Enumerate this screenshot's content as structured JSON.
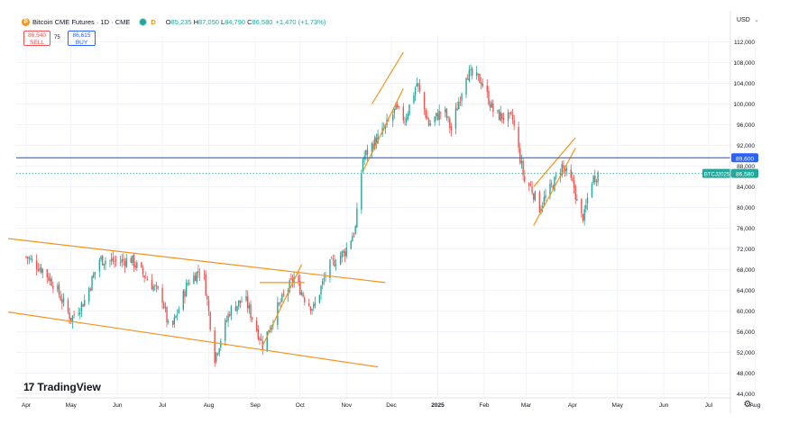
{
  "header": {
    "symbol_title": "Bitcoin CME Futures · 1D · CME",
    "logo_letter": "₿",
    "status_letter": "D",
    "o_label": "O",
    "o_value": "85,235",
    "h_label": "H",
    "h_value": "87,050",
    "l_label": "L",
    "l_value": "84,790",
    "c_label": "C",
    "c_value": "86,580",
    "change": "+1,470 (+1.73%)"
  },
  "trade": {
    "sell_price": "86,540",
    "sell_label": "SELL",
    "spread": "75",
    "buy_price": "86,615",
    "buy_label": "BUY"
  },
  "currency": "USD",
  "brand": "TradingView",
  "colors": {
    "up": "#26a69a",
    "down": "#ef5350",
    "trend": "#f7931a",
    "hline": "#2962ff",
    "grid": "#f0f3fa"
  },
  "chart_data": {
    "type": "candlestick",
    "symbol": "BTCJ2025",
    "y_ticks": [
      112000,
      108000,
      104000,
      100000,
      96000,
      92000,
      88000,
      84000,
      80000,
      76000,
      72000,
      68000,
      64000,
      60000,
      56000,
      52000,
      48000,
      44000
    ],
    "y_tick_labels": [
      "112,000",
      "108,000",
      "104,000",
      "100,000",
      "96,000",
      "92,000",
      "88,000",
      "84,000",
      "80,000",
      "76,000",
      "72,000",
      "68,000",
      "64,000",
      "60,000",
      "56,000",
      "52,000",
      "48,000",
      "44,000"
    ],
    "ylim": [
      43200,
      114000
    ],
    "x_tick_labels": [
      "Apr",
      "May",
      "Jun",
      "Jul",
      "Aug",
      "Sep",
      "Oct",
      "Nov",
      "Dec",
      "2025",
      "Feb",
      "Mar",
      "Apr",
      "May",
      "Jun",
      "Jul",
      "Aug"
    ],
    "x_tick_dates": [
      "2024-04-01",
      "2024-05-01",
      "2024-06-01",
      "2024-07-01",
      "2024-08-01",
      "2024-09-01",
      "2024-10-01",
      "2024-11-01",
      "2024-12-01",
      "2025-01-01",
      "2025-02-01",
      "2025-03-01",
      "2025-04-01",
      "2025-05-01",
      "2025-06-01",
      "2025-07-01",
      "2025-08-01"
    ],
    "horizontal_line": {
      "value": 89600,
      "label": "89,600"
    },
    "last_price": {
      "value": 86580,
      "label": "86,580",
      "symbol_label": "BTCJ2025"
    },
    "close_path": [
      [
        "2024-04-01",
        70500
      ],
      [
        "2024-04-12",
        68000
      ],
      [
        "2024-04-20",
        65000
      ],
      [
        "2024-05-01",
        58500
      ],
      [
        "2024-05-10",
        62000
      ],
      [
        "2024-05-20",
        70000
      ],
      [
        "2024-06-01",
        69500
      ],
      [
        "2024-06-10",
        70000
      ],
      [
        "2024-06-20",
        66500
      ],
      [
        "2024-07-01",
        62500
      ],
      [
        "2024-07-06",
        55500
      ],
      [
        "2024-07-18",
        65500
      ],
      [
        "2024-07-28",
        68500
      ],
      [
        "2024-08-05",
        51000
      ],
      [
        "2024-08-15",
        60000
      ],
      [
        "2024-08-25",
        62500
      ],
      [
        "2024-09-06",
        53500
      ],
      [
        "2024-09-15",
        60000
      ],
      [
        "2024-09-27",
        66500
      ],
      [
        "2024-10-05",
        62000
      ],
      [
        "2024-10-10",
        60500
      ],
      [
        "2024-10-20",
        68500
      ],
      [
        "2024-10-31",
        71500
      ],
      [
        "2024-11-07",
        76000
      ],
      [
        "2024-11-12",
        89500
      ],
      [
        "2024-11-18",
        92000
      ],
      [
        "2024-11-26",
        95000
      ],
      [
        "2024-12-04",
        99000
      ],
      [
        "2024-12-10",
        97000
      ],
      [
        "2024-12-18",
        104000
      ],
      [
        "2024-12-26",
        96000
      ],
      [
        "2025-01-05",
        99000
      ],
      [
        "2025-01-10",
        95000
      ],
      [
        "2025-01-20",
        106000
      ],
      [
        "2025-01-30",
        104500
      ],
      [
        "2025-02-08",
        98000
      ],
      [
        "2025-02-20",
        97000
      ],
      [
        "2025-02-28",
        85000
      ],
      [
        "2025-03-04",
        84000
      ],
      [
        "2025-03-10",
        80000
      ],
      [
        "2025-03-20",
        85000
      ],
      [
        "2025-03-25",
        88000
      ],
      [
        "2025-04-02",
        84000
      ],
      [
        "2025-04-06",
        78000
      ],
      [
        "2025-04-09",
        78500
      ],
      [
        "2025-04-13",
        85000
      ],
      [
        "2025-04-18",
        86580
      ]
    ],
    "trendlines": [
      {
        "p1": [
          "2024-03-20",
          74000
        ],
        "p2": [
          "2024-11-27",
          65500
        ]
      },
      {
        "p1": [
          "2024-03-20",
          59800
        ],
        "p2": [
          "2024-11-22",
          49200
        ]
      },
      {
        "p1": [
          "2024-09-06",
          53300
        ],
        "p2": [
          "2024-10-02",
          69000
        ]
      },
      {
        "p1": [
          "2024-09-04",
          65500
        ],
        "p2": [
          "2024-10-04",
          65500
        ]
      },
      {
        "p1": [
          "2024-11-12",
          87000
        ],
        "p2": [
          "2024-12-09",
          103000
        ]
      },
      {
        "p1": [
          "2024-11-18",
          100000
        ],
        "p2": [
          "2024-12-09",
          110000
        ]
      },
      {
        "p1": [
          "2025-03-06",
          76500
        ],
        "p2": [
          "2025-04-03",
          91500
        ]
      },
      {
        "p1": [
          "2025-03-06",
          84000
        ],
        "p2": [
          "2025-04-03",
          93500
        ]
      }
    ]
  }
}
